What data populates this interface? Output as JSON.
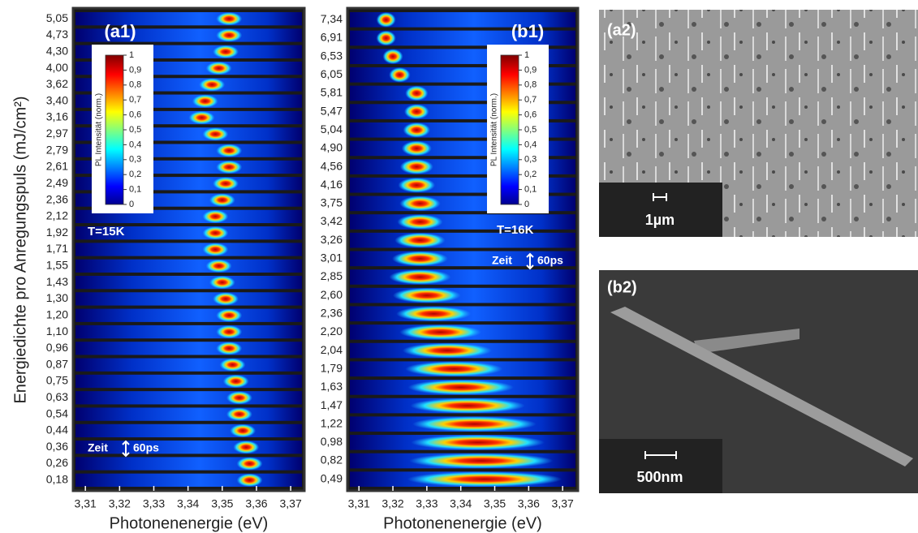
{
  "chart_data": [
    {
      "type": "heatmap-strips",
      "title": "(a1)",
      "ylabel": "Energiedichte pro Anregungspuls (mJ/cm²)",
      "xlabel": "Photonenenergie (eV)",
      "categories": [
        "5,05",
        "4,73",
        "4,30",
        "4,00",
        "3,62",
        "3,40",
        "3,16",
        "2,97",
        "2,79",
        "2,61",
        "2,49",
        "2,36",
        "2,12",
        "1,92",
        "1,71",
        "1,55",
        "1,43",
        "1,30",
        "1,20",
        "1,10",
        "0,96",
        "0,87",
        "0,75",
        "0,63",
        "0,54",
        "0,44",
        "0,36",
        "0,26",
        "0,18"
      ],
      "values": [
        3.352,
        3.352,
        3.351,
        3.349,
        3.347,
        3.345,
        3.344,
        3.348,
        3.352,
        3.352,
        3.351,
        3.35,
        3.348,
        3.348,
        3.348,
        3.349,
        3.35,
        3.351,
        3.352,
        3.352,
        3.352,
        3.353,
        3.354,
        3.355,
        3.355,
        3.356,
        3.357,
        3.358,
        3.358
      ],
      "xlim": [
        3.3064,
        3.374
      ],
      "xticks": [
        {
          "value": 3.31,
          "label": "3,31"
        },
        {
          "value": 3.32,
          "label": "3,32"
        },
        {
          "value": 3.33,
          "label": "3,33"
        },
        {
          "value": 3.34,
          "label": "3,34"
        },
        {
          "value": 3.35,
          "label": "3,35"
        },
        {
          "value": 3.36,
          "label": "3,36"
        },
        {
          "value": 3.37,
          "label": "3,37"
        }
      ],
      "temperature": "T=15K",
      "time_label": "Zeit",
      "time_scale": "60ps",
      "colorbar": {
        "label": "PL Intensität (norm.)",
        "lim": [
          0,
          1
        ],
        "ticks": [
          0,
          {
            "value": 0.1,
            "label": "0,1"
          },
          {
            "value": 0.2,
            "label": "0,2"
          },
          {
            "value": 0.3,
            "label": "0,3"
          },
          {
            "value": 0.4,
            "label": "0,4"
          },
          {
            "value": 0.5,
            "label": "0,5"
          },
          {
            "value": 0.6,
            "label": "0,6"
          },
          {
            "value": 0.7,
            "label": "0,7"
          },
          {
            "value": 0.8,
            "label": "0,8"
          },
          {
            "value": 0.9,
            "label": "0,9"
          },
          1
        ]
      }
    },
    {
      "type": "heatmap-strips",
      "title": "(b1)",
      "xlabel": "Photonenenergie (eV)",
      "categories": [
        "7,34",
        "6,91",
        "6,53",
        "6,05",
        "5,81",
        "5,47",
        "5,04",
        "4,90",
        "4,56",
        "4,16",
        "3,75",
        "3,42",
        "3,26",
        "3,01",
        "2,85",
        "2,60",
        "2,36",
        "2,20",
        "2,04",
        "1,79",
        "1,63",
        "1,47",
        "1,22",
        "0,98",
        "0,82",
        "0,49"
      ],
      "values": [
        3.318,
        3.318,
        3.32,
        3.322,
        3.327,
        3.327,
        3.327,
        3.327,
        3.327,
        3.327,
        3.328,
        3.328,
        3.328,
        3.328,
        3.328,
        3.33,
        3.332,
        3.334,
        3.336,
        3.338,
        3.34,
        3.342,
        3.344,
        3.345,
        3.346,
        3.347
      ],
      "xlim": [
        3.3066,
        3.3745
      ],
      "xticks": [
        {
          "value": 3.31,
          "label": "3,31"
        },
        {
          "value": 3.32,
          "label": "3,32"
        },
        {
          "value": 3.33,
          "label": "3,33"
        },
        {
          "value": 3.34,
          "label": "3,34"
        },
        {
          "value": 3.35,
          "label": "3,35"
        },
        {
          "value": 3.36,
          "label": "3,36"
        },
        {
          "value": 3.37,
          "label": "3,37"
        }
      ],
      "temperature": "T=16K",
      "time_label": "Zeit",
      "time_scale": "60ps",
      "colorbar": {
        "label": "PL Intensität (norm.)",
        "lim": [
          0,
          1
        ],
        "ticks": [
          0,
          {
            "value": 0.1,
            "label": "0,1"
          },
          {
            "value": 0.2,
            "label": "0,2"
          },
          {
            "value": 0.3,
            "label": "0,3"
          },
          {
            "value": 0.4,
            "label": "0,4"
          },
          {
            "value": 0.5,
            "label": "0,5"
          },
          {
            "value": 0.6,
            "label": "0,6"
          },
          {
            "value": 0.7,
            "label": "0,7"
          },
          {
            "value": 0.8,
            "label": "0,8"
          },
          {
            "value": 0.9,
            "label": "0,9"
          },
          1
        ]
      }
    }
  ],
  "images": [
    {
      "label": "(a2)",
      "scale": "1µm"
    },
    {
      "label": "(b2)",
      "scale": "500nm"
    }
  ]
}
